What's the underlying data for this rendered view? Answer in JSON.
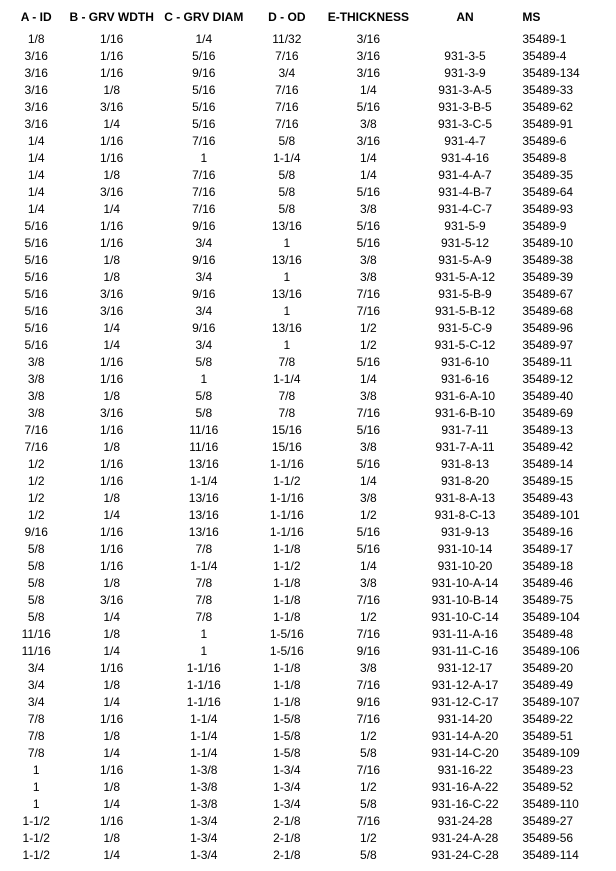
{
  "table": {
    "type": "table",
    "background_color": "#ffffff",
    "text_color": "#000000",
    "font_family": "Arial",
    "header_fontsize": 12,
    "cell_fontsize": 12,
    "columns": [
      {
        "key": "a_id",
        "label": "A - ID",
        "align": "center",
        "width": "10%"
      },
      {
        "key": "b_grv_wdth",
        "label": "B - GRV WDTH",
        "align": "center",
        "width": "15%"
      },
      {
        "key": "c_grv_diam",
        "label": "C - GRV DIAM",
        "align": "center",
        "width": "15.5%"
      },
      {
        "key": "d_od",
        "label": "D - OD",
        "align": "center",
        "width": "12%"
      },
      {
        "key": "e_thick",
        "label": "E-THICKNESS",
        "align": "center",
        "width": "15%"
      },
      {
        "key": "an",
        "label": "AN",
        "align": "center",
        "width": "17%"
      },
      {
        "key": "ms",
        "label": "MS",
        "align": "left",
        "width": "15.5%"
      }
    ],
    "rows": [
      [
        "1/8",
        "1/16",
        "1/4",
        "11/32",
        "3/16",
        "",
        "35489-1"
      ],
      [
        "3/16",
        "1/16",
        "5/16",
        "7/16",
        "3/16",
        "931-3-5",
        "35489-4"
      ],
      [
        "3/16",
        "1/16",
        "9/16",
        "3/4",
        "3/16",
        "931-3-9",
        "35489-134"
      ],
      [
        "3/16",
        "1/8",
        "5/16",
        "7/16",
        "1/4",
        "931-3-A-5",
        "35489-33"
      ],
      [
        "3/16",
        "3/16",
        "5/16",
        "7/16",
        "5/16",
        "931-3-B-5",
        "35489-62"
      ],
      [
        "3/16",
        "1/4",
        "5/16",
        "7/16",
        "3/8",
        "931-3-C-5",
        "35489-91"
      ],
      [
        "1/4",
        "1/16",
        "7/16",
        "5/8",
        "3/16",
        "931-4-7",
        "35489-6"
      ],
      [
        "1/4",
        "1/16",
        "1",
        "1-1/4",
        "1/4",
        "931-4-16",
        "35489-8"
      ],
      [
        "1/4",
        "1/8",
        "7/16",
        "5/8",
        "1/4",
        "931-4-A-7",
        "35489-35"
      ],
      [
        "1/4",
        "3/16",
        "7/16",
        "5/8",
        "5/16",
        "931-4-B-7",
        "35489-64"
      ],
      [
        "1/4",
        "1/4",
        "7/16",
        "5/8",
        "3/8",
        "931-4-C-7",
        "35489-93"
      ],
      [
        "5/16",
        "1/16",
        "9/16",
        "13/16",
        "5/16",
        "931-5-9",
        "35489-9"
      ],
      [
        "5/16",
        "1/16",
        "3/4",
        "1",
        "5/16",
        "931-5-12",
        "35489-10"
      ],
      [
        "5/16",
        "1/8",
        "9/16",
        "13/16",
        "3/8",
        "931-5-A-9",
        "35489-38"
      ],
      [
        "5/16",
        "1/8",
        "3/4",
        "1",
        "3/8",
        "931-5-A-12",
        "35489-39"
      ],
      [
        "5/16",
        "3/16",
        "9/16",
        "13/16",
        "7/16",
        "931-5-B-9",
        "35489-67"
      ],
      [
        "5/16",
        "3/16",
        "3/4",
        "1",
        "7/16",
        "931-5-B-12",
        "35489-68"
      ],
      [
        "5/16",
        "1/4",
        "9/16",
        "13/16",
        "1/2",
        "931-5-C-9",
        "35489-96"
      ],
      [
        "5/16",
        "1/4",
        "3/4",
        "1",
        "1/2",
        "931-5-C-12",
        "35489-97"
      ],
      [
        "3/8",
        "1/16",
        "5/8",
        "7/8",
        "5/16",
        "931-6-10",
        "35489-11"
      ],
      [
        "3/8",
        "1/16",
        "1",
        "1-1/4",
        "1/4",
        "931-6-16",
        "35489-12"
      ],
      [
        "3/8",
        "1/8",
        "5/8",
        "7/8",
        "3/8",
        "931-6-A-10",
        "35489-40"
      ],
      [
        "3/8",
        "3/16",
        "5/8",
        "7/8",
        "7/16",
        "931-6-B-10",
        "35489-69"
      ],
      [
        "7/16",
        "1/16",
        "11/16",
        "15/16",
        "5/16",
        "931-7-11",
        "35489-13"
      ],
      [
        "7/16",
        "1/8",
        "11/16",
        "15/16",
        "3/8",
        "931-7-A-11",
        "35489-42"
      ],
      [
        "1/2",
        "1/16",
        "13/16",
        "1-1/16",
        "5/16",
        "931-8-13",
        "35489-14"
      ],
      [
        "1/2",
        "1/16",
        "1-1/4",
        "1-1/2",
        "1/4",
        "931-8-20",
        "35489-15"
      ],
      [
        "1/2",
        "1/8",
        "13/16",
        "1-1/16",
        "3/8",
        "931-8-A-13",
        "35489-43"
      ],
      [
        "1/2",
        "1/4",
        "13/16",
        "1-1/16",
        "1/2",
        "931-8-C-13",
        "35489-101"
      ],
      [
        "9/16",
        "1/16",
        "13/16",
        "1-1/16",
        "5/16",
        "931-9-13",
        "35489-16"
      ],
      [
        "5/8",
        "1/16",
        "7/8",
        "1-1/8",
        "5/16",
        "931-10-14",
        "35489-17"
      ],
      [
        "5/8",
        "1/16",
        "1-1/4",
        "1-1/2",
        "1/4",
        "931-10-20",
        "35489-18"
      ],
      [
        "5/8",
        "1/8",
        "7/8",
        "1-1/8",
        "3/8",
        "931-10-A-14",
        "35489-46"
      ],
      [
        "5/8",
        "3/16",
        "7/8",
        "1-1/8",
        "7/16",
        "931-10-B-14",
        "35489-75"
      ],
      [
        "5/8",
        "1/4",
        "7/8",
        "1-1/8",
        "1/2",
        "931-10-C-14",
        "35489-104"
      ],
      [
        "11/16",
        "1/8",
        "1",
        "1-5/16",
        "7/16",
        "931-11-A-16",
        "35489-48"
      ],
      [
        "11/16",
        "1/4",
        "1",
        "1-5/16",
        "9/16",
        "931-11-C-16",
        "35489-106"
      ],
      [
        "3/4",
        "1/16",
        "1-1/16",
        "1-1/8",
        "3/8",
        "931-12-17",
        "35489-20"
      ],
      [
        "3/4",
        "1/8",
        "1-1/16",
        "1-1/8",
        "7/16",
        "931-12-A-17",
        "35489-49"
      ],
      [
        "3/4",
        "1/4",
        "1-1/16",
        "1-1/8",
        "9/16",
        "931-12-C-17",
        "35489-107"
      ],
      [
        "7/8",
        "1/16",
        "1-1/4",
        "1-5/8",
        "7/16",
        "931-14-20",
        "35489-22"
      ],
      [
        "7/8",
        "1/8",
        "1-1/4",
        "1-5/8",
        "1/2",
        "931-14-A-20",
        "35489-51"
      ],
      [
        "7/8",
        "1/4",
        "1-1/4",
        "1-5/8",
        "5/8",
        "931-14-C-20",
        "35489-109"
      ],
      [
        "1",
        "1/16",
        "1-3/8",
        "1-3/4",
        "7/16",
        "931-16-22",
        "35489-23"
      ],
      [
        "1",
        "1/8",
        "1-3/8",
        "1-3/4",
        "1/2",
        "931-16-A-22",
        "35489-52"
      ],
      [
        "1",
        "1/4",
        "1-3/8",
        "1-3/4",
        "5/8",
        "931-16-C-22",
        "35489-110"
      ],
      [
        "1-1/2",
        "1/16",
        "1-3/4",
        "2-1/8",
        "7/16",
        "931-24-28",
        "35489-27"
      ],
      [
        "1-1/2",
        "1/8",
        "1-3/4",
        "2-1/8",
        "1/2",
        "931-24-A-28",
        "35489-56"
      ],
      [
        "1-1/2",
        "1/4",
        "1-3/4",
        "2-1/8",
        "5/8",
        "931-24-C-28",
        "35489-114"
      ]
    ]
  }
}
